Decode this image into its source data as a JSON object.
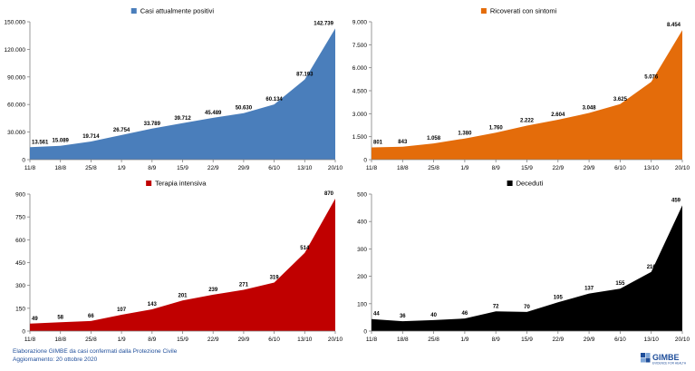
{
  "chart_data": [
    {
      "type": "area",
      "legend": "Casi attualmente positivi",
      "color": "#4a7ebb",
      "categories": [
        "11/8",
        "18/8",
        "25/8",
        "1/9",
        "8/9",
        "15/9",
        "22/9",
        "29/9",
        "6/10",
        "13/10",
        "20/10"
      ],
      "values": [
        13561,
        15089,
        19714,
        26754,
        33789,
        39712,
        45489,
        50630,
        60134,
        87193,
        142739
      ],
      "value_labels": [
        "13.561",
        "15.089",
        "19.714",
        "26.754",
        "33.789",
        "39.712",
        "45.489",
        "50.630",
        "60.134",
        "87.193",
        "142.739"
      ],
      "ylim": [
        0,
        150000
      ],
      "yticks": [
        "0",
        "30.000",
        "60.000",
        "90.000",
        "120.000",
        "150.000"
      ]
    },
    {
      "type": "area",
      "legend": "Ricoverati con sintomi",
      "color": "#e46c0a",
      "categories": [
        "11/8",
        "18/8",
        "25/8",
        "1/9",
        "8/9",
        "15/9",
        "22/9",
        "29/9",
        "6/10",
        "13/10",
        "20/10"
      ],
      "values": [
        801,
        843,
        1058,
        1380,
        1760,
        2222,
        2604,
        3048,
        3625,
        5076,
        8454
      ],
      "value_labels": [
        "801",
        "843",
        "1.058",
        "1.380",
        "1.760",
        "2.222",
        "2.604",
        "3.048",
        "3.625",
        "5.076",
        "8.454"
      ],
      "ylim": [
        0,
        9000
      ],
      "yticks": [
        "0",
        "1.500",
        "3.000",
        "4.500",
        "6.000",
        "7.500",
        "9.000"
      ]
    },
    {
      "type": "area",
      "legend": "Terapia intensiva",
      "color": "#c00000",
      "categories": [
        "11/8",
        "18/8",
        "25/8",
        "1/9",
        "8/9",
        "15/9",
        "22/9",
        "29/9",
        "6/10",
        "13/10",
        "20/10"
      ],
      "values": [
        49,
        58,
        66,
        107,
        143,
        201,
        239,
        271,
        319,
        514,
        870
      ],
      "value_labels": [
        "49",
        "58",
        "66",
        "107",
        "143",
        "201",
        "239",
        "271",
        "319",
        "514",
        "870"
      ],
      "ylim": [
        0,
        900
      ],
      "yticks": [
        "0",
        "150",
        "300",
        "450",
        "600",
        "750",
        "900"
      ]
    },
    {
      "type": "area",
      "legend": "Deceduti",
      "color": "#000000",
      "categories": [
        "11/8",
        "18/8",
        "25/8",
        "1/9",
        "8/9",
        "15/9",
        "22/9",
        "29/9",
        "6/10",
        "13/10",
        "20/10"
      ],
      "values": [
        44,
        36,
        40,
        46,
        72,
        70,
        105,
        137,
        155,
        216,
        459
      ],
      "value_labels": [
        "44",
        "36",
        "40",
        "46",
        "72",
        "70",
        "105",
        "137",
        "155",
        "216",
        "459"
      ],
      "ylim": [
        0,
        500
      ],
      "yticks": [
        "0",
        "100",
        "200",
        "300",
        "400",
        "500"
      ]
    }
  ],
  "footer": {
    "line1": "Elaborazione GIMBE da casi confermati dalla Protezione Civile",
    "line2": "Aggiornamento: 20 ottobre 2020"
  },
  "logo": {
    "text": "GIMBE",
    "subtext": "EVIDENCE FOR HEALTH",
    "color": "#1f4e9a"
  }
}
